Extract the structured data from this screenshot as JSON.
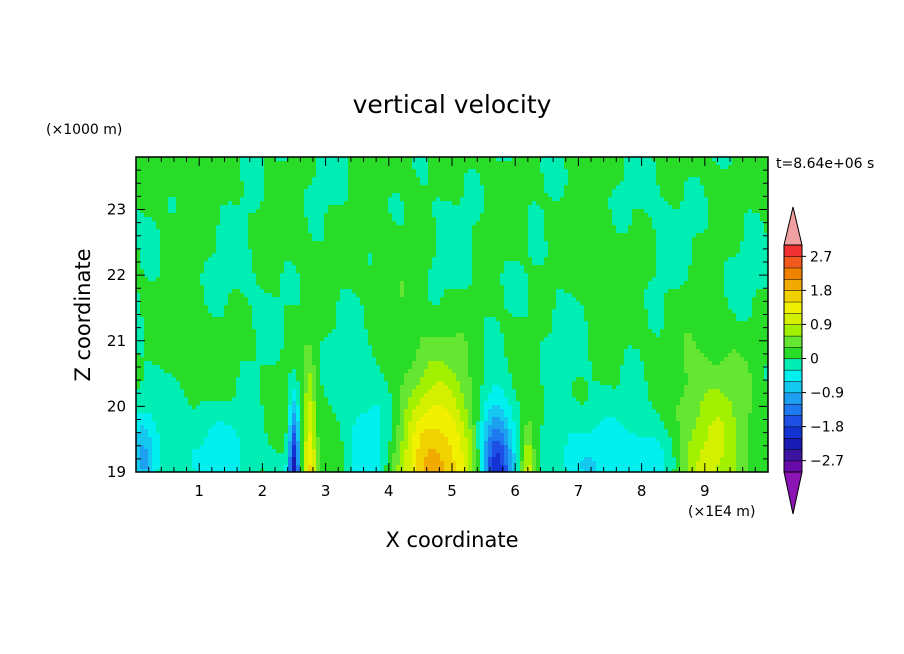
{
  "chart_data": {
    "type": "heatmap",
    "title": "vertical velocity",
    "xlabel": "X coordinate",
    "ylabel": "Z coordinate",
    "x_unit_label": "(×1E4 m)",
    "y_unit_label": "(×1000 m)",
    "time_label": "t=8.64e+06 s",
    "xlim": [
      0,
      10
    ],
    "ylim": [
      19,
      23.8
    ],
    "x_ticks": [
      "1",
      "2",
      "3",
      "4",
      "5",
      "6",
      "7",
      "8",
      "9"
    ],
    "y_ticks": [
      "19",
      "20",
      "21",
      "22",
      "23"
    ],
    "colorbar": {
      "levels": [
        -3.0,
        -2.7,
        -2.4,
        -2.1,
        -1.8,
        -1.5,
        -1.2,
        -0.9,
        -0.6,
        -0.3,
        0.0,
        0.3,
        0.6,
        0.9,
        1.2,
        1.5,
        1.8,
        2.1,
        2.4,
        2.7,
        3.0
      ],
      "colors": [
        "#6a0aa8",
        "#3c14a0",
        "#1a1ab4",
        "#1432d2",
        "#1e50e6",
        "#1e78f0",
        "#1ea0f0",
        "#14c8f0",
        "#00f0f0",
        "#00eeb4",
        "#28dc28",
        "#64e632",
        "#a0f000",
        "#d2f000",
        "#f0f000",
        "#f0d200",
        "#f0aa00",
        "#f08200",
        "#f05a1e",
        "#f03232"
      ],
      "under_color": "#8c14b4",
      "over_color": "#f0a0a0",
      "tick_labels": [
        "2.7",
        "1.8",
        "0.9",
        "0",
        "−0.9",
        "−1.8",
        "−2.7"
      ],
      "tick_values": [
        2.7,
        1.8,
        0.9,
        0.0,
        -0.9,
        -1.8,
        -2.7
      ]
    },
    "features": [
      {
        "x": 2.5,
        "z": 19.0,
        "amp": -2.3,
        "sx": 0.06,
        "sz": 0.7
      },
      {
        "x": 2.75,
        "z": 19.0,
        "amp": 1.4,
        "sx": 0.07,
        "sz": 1.0
      },
      {
        "x": 4.8,
        "z": 19.0,
        "amp": 1.9,
        "sx": 0.45,
        "sz": 1.0
      },
      {
        "x": 5.7,
        "z": 19.0,
        "amp": -2.2,
        "sx": 0.2,
        "sz": 0.8
      },
      {
        "x": 6.2,
        "z": 19.0,
        "amp": 1.1,
        "sx": 0.08,
        "sz": 0.5
      },
      {
        "x": 8.0,
        "z": 19.1,
        "amp": -0.8,
        "sx": 0.45,
        "sz": 0.5
      },
      {
        "x": 9.0,
        "z": 19.2,
        "amp": 1.0,
        "sx": 0.45,
        "sz": 0.9
      },
      {
        "x": 3.7,
        "z": 19.3,
        "amp": -0.6,
        "sx": 0.3,
        "sz": 0.7
      },
      {
        "x": 1.2,
        "z": 19.3,
        "amp": -0.5,
        "sx": 0.4,
        "sz": 0.5
      },
      {
        "x": 0.1,
        "z": 19.2,
        "amp": -0.9,
        "sx": 0.15,
        "sz": 0.5
      },
      {
        "x": 7.0,
        "z": 19.2,
        "amp": -0.5,
        "sx": 0.4,
        "sz": 0.5
      }
    ]
  }
}
